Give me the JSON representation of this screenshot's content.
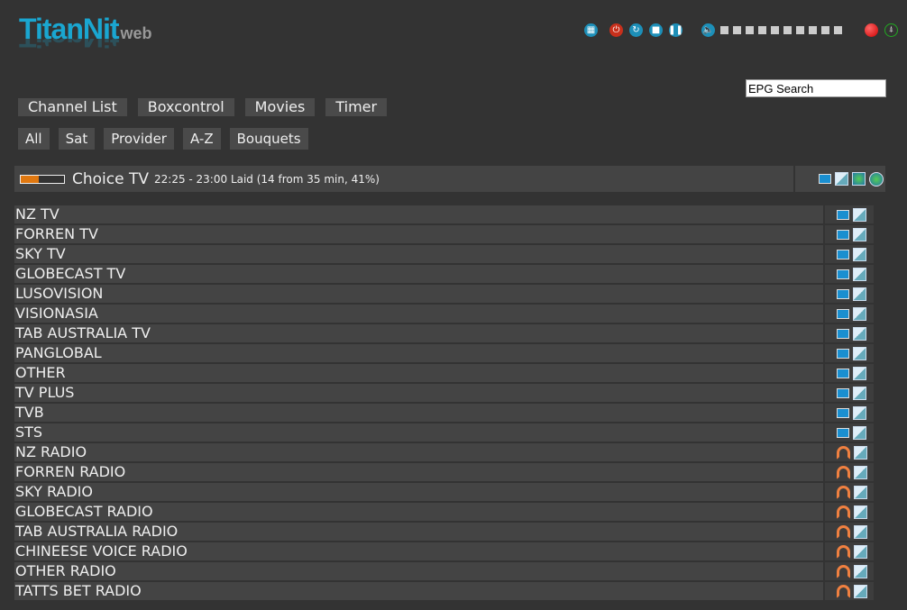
{
  "logo": {
    "main": "TitanNit",
    "sub": "web"
  },
  "controls": {
    "icons": [
      "remote-icon",
      "power-icon",
      "restart-icon",
      "stop-icon",
      "pause-icon",
      "volume-icon",
      "record-icon",
      "signal-icon"
    ],
    "volume_steps": 10
  },
  "search": {
    "value": "EPG Search"
  },
  "nav": [
    "Channel List",
    "Boxcontrol",
    "Movies",
    "Timer"
  ],
  "filters": [
    "All",
    "Sat",
    "Provider",
    "A-Z",
    "Bouquets"
  ],
  "now": {
    "channel": "Choice TV",
    "epg": "22:25 - 23:00 Laid (14 from 35 min, 41%)",
    "progress_percent": 41,
    "progress_color": "#e07810"
  },
  "bouquets": [
    {
      "name": "NZ TV",
      "type": "tv"
    },
    {
      "name": "FORREN TV",
      "type": "tv"
    },
    {
      "name": "SKY TV",
      "type": "tv"
    },
    {
      "name": "GLOBECAST TV",
      "type": "tv"
    },
    {
      "name": "LUSOVISION",
      "type": "tv"
    },
    {
      "name": "VISIONASIA",
      "type": "tv"
    },
    {
      "name": "TAB AUSTRALIA TV",
      "type": "tv"
    },
    {
      "name": "PANGLOBAL",
      "type": "tv"
    },
    {
      "name": "OTHER",
      "type": "tv"
    },
    {
      "name": "TV PLUS",
      "type": "tv"
    },
    {
      "name": "TVB",
      "type": "tv"
    },
    {
      "name": "STS",
      "type": "tv"
    },
    {
      "name": "NZ RADIO",
      "type": "radio"
    },
    {
      "name": "FORREN RADIO",
      "type": "radio"
    },
    {
      "name": "SKY RADIO",
      "type": "radio"
    },
    {
      "name": "GLOBECAST RADIO",
      "type": "radio"
    },
    {
      "name": "TAB AUSTRALIA RADIO",
      "type": "radio"
    },
    {
      "name": "CHINEESE VOICE RADIO",
      "type": "radio"
    },
    {
      "name": "OTHER RADIO",
      "type": "radio"
    },
    {
      "name": "TATTS BET RADIO",
      "type": "radio"
    }
  ]
}
